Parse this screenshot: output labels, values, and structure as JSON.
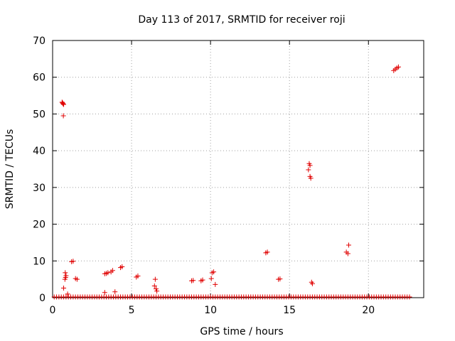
{
  "chart_data": {
    "type": "scatter",
    "title": "Day 113 of 2017, SRMTID for receiver roji",
    "xlabel": "GPS time / hours",
    "ylabel": "SRMTID / TECUs",
    "xlim": [
      0,
      23.5
    ],
    "ylim": [
      0,
      70
    ],
    "xticks": [
      0,
      5,
      10,
      15,
      20
    ],
    "yticks": [
      0,
      10,
      20,
      30,
      40,
      50,
      60,
      70
    ],
    "grid": true,
    "marker": "plus",
    "color": "#e00000",
    "clusters": [
      {
        "x": 0.6,
        "y": 53.2
      },
      {
        "x": 0.63,
        "y": 53.0
      },
      {
        "x": 0.66,
        "y": 52.8
      },
      {
        "x": 0.7,
        "y": 52.6
      },
      {
        "x": 0.68,
        "y": 49.5
      },
      {
        "x": 0.8,
        "y": 6.8
      },
      {
        "x": 0.82,
        "y": 5.5
      },
      {
        "x": 0.78,
        "y": 5.0
      },
      {
        "x": 0.85,
        "y": 6.0
      },
      {
        "x": 0.7,
        "y": 2.6
      },
      {
        "x": 0.95,
        "y": 1.0
      },
      {
        "x": 1.2,
        "y": 9.8
      },
      {
        "x": 1.3,
        "y": 9.9
      },
      {
        "x": 1.45,
        "y": 5.2
      },
      {
        "x": 1.55,
        "y": 5.0
      },
      {
        "x": 3.3,
        "y": 6.5
      },
      {
        "x": 3.4,
        "y": 6.6
      },
      {
        "x": 3.5,
        "y": 6.8
      },
      {
        "x": 3.7,
        "y": 7.0
      },
      {
        "x": 3.8,
        "y": 7.4
      },
      {
        "x": 3.3,
        "y": 1.4
      },
      {
        "x": 3.95,
        "y": 1.6
      },
      {
        "x": 4.3,
        "y": 8.2
      },
      {
        "x": 4.4,
        "y": 8.4
      },
      {
        "x": 5.3,
        "y": 5.6
      },
      {
        "x": 5.4,
        "y": 5.9
      },
      {
        "x": 6.5,
        "y": 5.0
      },
      {
        "x": 6.45,
        "y": 3.2
      },
      {
        "x": 6.55,
        "y": 2.4
      },
      {
        "x": 6.6,
        "y": 1.8
      },
      {
        "x": 8.8,
        "y": 4.6
      },
      {
        "x": 8.9,
        "y": 4.7
      },
      {
        "x": 9.4,
        "y": 4.6
      },
      {
        "x": 9.5,
        "y": 4.8
      },
      {
        "x": 10.1,
        "y": 6.8
      },
      {
        "x": 10.2,
        "y": 7.0
      },
      {
        "x": 10.05,
        "y": 5.2
      },
      {
        "x": 10.3,
        "y": 3.6
      },
      {
        "x": 13.5,
        "y": 12.2
      },
      {
        "x": 13.6,
        "y": 12.4
      },
      {
        "x": 14.3,
        "y": 5.0
      },
      {
        "x": 14.4,
        "y": 5.1
      },
      {
        "x": 16.2,
        "y": 34.8
      },
      {
        "x": 16.25,
        "y": 36.5
      },
      {
        "x": 16.3,
        "y": 36.0
      },
      {
        "x": 16.3,
        "y": 33.0
      },
      {
        "x": 16.35,
        "y": 32.5
      },
      {
        "x": 16.4,
        "y": 4.2
      },
      {
        "x": 16.45,
        "y": 3.8
      },
      {
        "x": 18.6,
        "y": 12.4
      },
      {
        "x": 18.7,
        "y": 12.0
      },
      {
        "x": 18.75,
        "y": 14.3
      },
      {
        "x": 21.6,
        "y": 61.8
      },
      {
        "x": 21.7,
        "y": 62.2
      },
      {
        "x": 21.8,
        "y": 62.5
      },
      {
        "x": 21.9,
        "y": 62.8
      }
    ],
    "baseline": {
      "x_start": 0.1,
      "x_end": 22.7,
      "step": 0.15,
      "y": 0.2
    }
  }
}
